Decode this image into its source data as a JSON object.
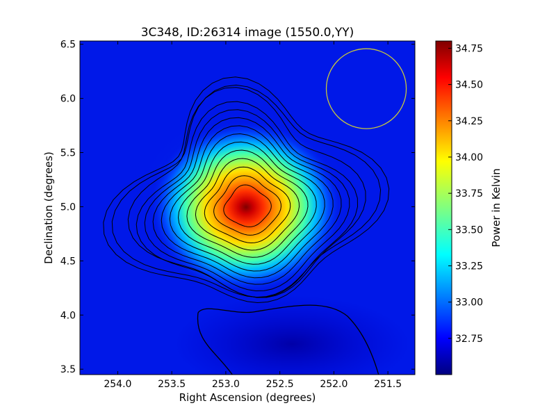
{
  "chart_data": {
    "type": "heatmap",
    "title": "3C348, ID:26314 image (1550.0,YY)",
    "xlabel": "Right Ascension (degrees)",
    "ylabel": "Declination (degrees)",
    "xlim": [
      254.35,
      251.25
    ],
    "ylim": [
      3.45,
      6.53
    ],
    "x_ticks": [
      254.0,
      253.5,
      253.0,
      252.5,
      252.0,
      251.5
    ],
    "x_tick_labels": [
      "254.0",
      "253.5",
      "253.0",
      "252.5",
      "252.0",
      "251.5"
    ],
    "y_ticks": [
      3.5,
      4.0,
      4.5,
      5.0,
      5.5,
      6.0,
      6.5
    ],
    "y_tick_labels": [
      "3.5",
      "4.0",
      "4.5",
      "5.0",
      "5.5",
      "6.0",
      "6.5"
    ],
    "colorbar": {
      "label": "Power in Kelvin",
      "range": [
        32.5,
        34.8
      ],
      "ticks": [
        32.75,
        33.0,
        33.25,
        33.5,
        33.75,
        34.0,
        34.25,
        34.5,
        34.75
      ],
      "tick_labels": [
        "32.75",
        "33.00",
        "33.25",
        "33.50",
        "33.75",
        "34.00",
        "34.25",
        "34.50",
        "34.75"
      ],
      "colormap": "jet"
    },
    "source_peak": {
      "ra": 252.8,
      "dec": 5.0,
      "value": 34.8
    },
    "beam_circle": {
      "ra": 251.7,
      "dec": 6.09,
      "radius_deg": 0.37,
      "color": "#c8c83c"
    },
    "contour_levels": 14,
    "grid": false
  }
}
